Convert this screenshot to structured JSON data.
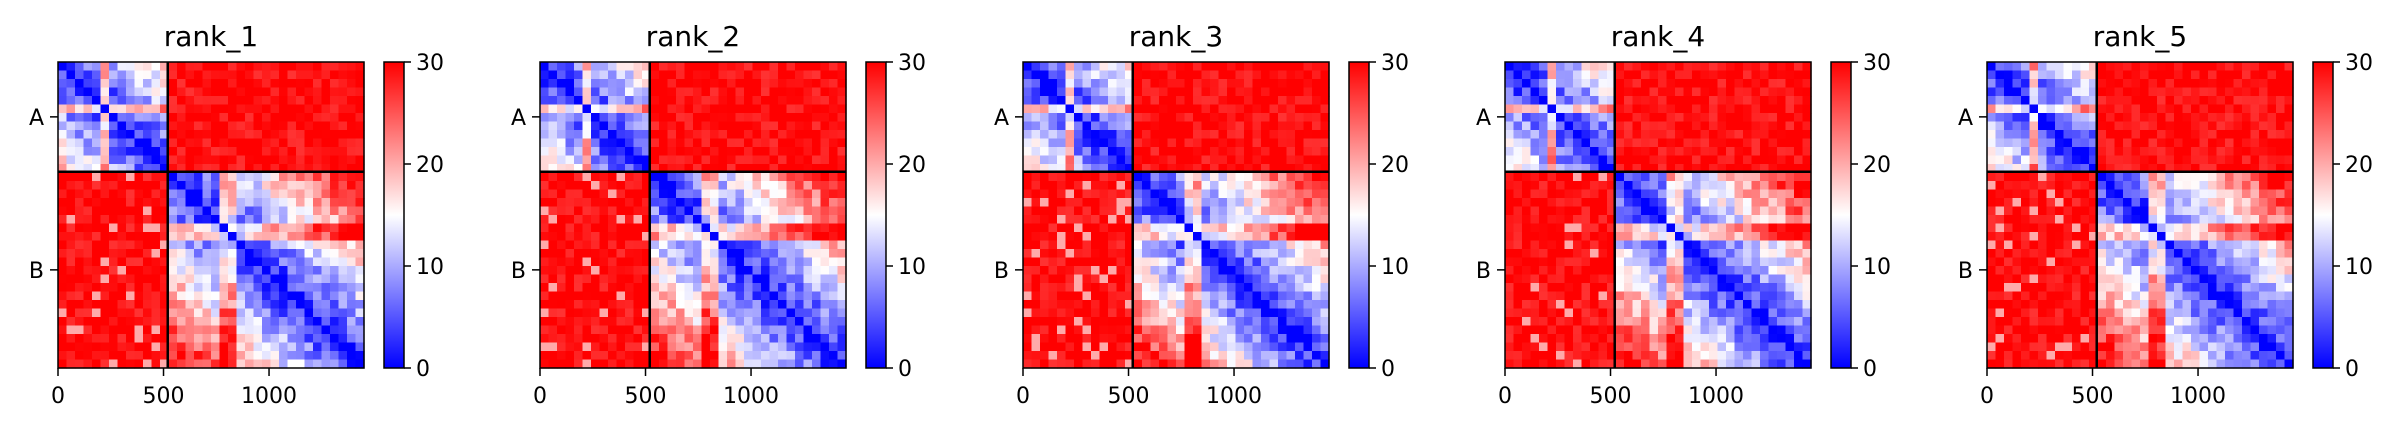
{
  "chart_data": [
    {
      "type": "heatmap",
      "title": "rank_1",
      "x_ticks": [
        0,
        500,
        1000
      ],
      "x_range": [
        0,
        1450
      ],
      "chains": [
        {
          "label": "A",
          "start": 0,
          "end": 520
        },
        {
          "label": "B",
          "start": 520,
          "end": 1450
        }
      ],
      "colorbar": {
        "range": [
          0,
          30
        ],
        "ticks": [
          0,
          10,
          20,
          30
        ],
        "colors": [
          "#0000ff",
          "#ffffff",
          "#ff0000"
        ]
      }
    },
    {
      "type": "heatmap",
      "title": "rank_2",
      "x_ticks": [
        0,
        500,
        1000
      ],
      "x_range": [
        0,
        1450
      ],
      "chains": [
        {
          "label": "A",
          "start": 0,
          "end": 520
        },
        {
          "label": "B",
          "start": 520,
          "end": 1450
        }
      ],
      "colorbar": {
        "range": [
          0,
          30
        ],
        "ticks": [
          0,
          10,
          20,
          30
        ],
        "colors": [
          "#0000ff",
          "#ffffff",
          "#ff0000"
        ]
      }
    },
    {
      "type": "heatmap",
      "title": "rank_3",
      "x_ticks": [
        0,
        500,
        1000
      ],
      "x_range": [
        0,
        1450
      ],
      "chains": [
        {
          "label": "A",
          "start": 0,
          "end": 520
        },
        {
          "label": "B",
          "start": 520,
          "end": 1450
        }
      ],
      "colorbar": {
        "range": [
          0,
          30
        ],
        "ticks": [
          0,
          10,
          20,
          30
        ],
        "colors": [
          "#0000ff",
          "#ffffff",
          "#ff0000"
        ]
      }
    },
    {
      "type": "heatmap",
      "title": "rank_4",
      "x_ticks": [
        0,
        500,
        1000
      ],
      "x_range": [
        0,
        1450
      ],
      "chains": [
        {
          "label": "A",
          "start": 0,
          "end": 520
        },
        {
          "label": "B",
          "start": 520,
          "end": 1450
        }
      ],
      "colorbar": {
        "range": [
          0,
          30
        ],
        "ticks": [
          0,
          10,
          20,
          30
        ],
        "colors": [
          "#0000ff",
          "#ffffff",
          "#ff0000"
        ]
      }
    },
    {
      "type": "heatmap",
      "title": "rank_5",
      "x_ticks": [
        0,
        500,
        1000
      ],
      "x_range": [
        0,
        1450
      ],
      "chains": [
        {
          "label": "A",
          "start": 0,
          "end": 520
        },
        {
          "label": "B",
          "start": 520,
          "end": 1450
        }
      ],
      "colorbar": {
        "range": [
          0,
          30
        ],
        "ticks": [
          0,
          10,
          20,
          30
        ],
        "colors": [
          "#0000ff",
          "#ffffff",
          "#ff0000"
        ]
      }
    }
  ]
}
